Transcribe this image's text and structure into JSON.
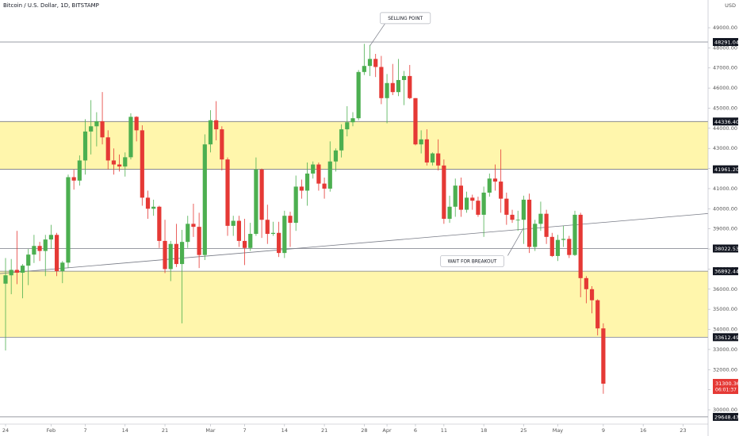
{
  "chart_data": {
    "type": "candlestick",
    "title": "Bitcoin / U.S. Dollar, 1D, BITSTAMP",
    "currency": "USD",
    "up_color": "#4caf50",
    "down_color": "#e53935",
    "x": [
      "Jan 24",
      "Jan 25",
      "Jan 26",
      "Jan 27",
      "Jan 28",
      "Jan 29",
      "Jan 30",
      "Jan 31",
      "Feb 1",
      "Feb 2",
      "Feb 3",
      "Feb 4",
      "Feb 5",
      "Feb 6",
      "Feb 7",
      "Feb 8",
      "Feb 9",
      "Feb 10",
      "Feb 11",
      "Feb 12",
      "Feb 13",
      "Feb 14",
      "Feb 15",
      "Feb 16",
      "Feb 17",
      "Feb 18",
      "Feb 19",
      "Feb 20",
      "Feb 21",
      "Feb 22",
      "Feb 23",
      "Feb 24",
      "Feb 25",
      "Feb 26",
      "Feb 27",
      "Feb 28",
      "Mar 1",
      "Mar 2",
      "Mar 3",
      "Mar 4",
      "Mar 5",
      "Mar 6",
      "Mar 7",
      "Mar 8",
      "Mar 9",
      "Mar 10",
      "Mar 11",
      "Mar 12",
      "Mar 13",
      "Mar 14",
      "Mar 15",
      "Mar 16",
      "Mar 17",
      "Mar 18",
      "Mar 19",
      "Mar 20",
      "Mar 21",
      "Mar 22",
      "Mar 23",
      "Mar 24",
      "Mar 25",
      "Mar 26",
      "Mar 27",
      "Mar 28",
      "Mar 29",
      "Mar 30",
      "Mar 31",
      "Apr 1",
      "Apr 2",
      "Apr 3",
      "Apr 4",
      "Apr 5",
      "Apr 6",
      "Apr 7",
      "Apr 8",
      "Apr 9",
      "Apr 10",
      "Apr 11",
      "Apr 12",
      "Apr 13",
      "Apr 14",
      "Apr 15",
      "Apr 16",
      "Apr 17",
      "Apr 18",
      "Apr 19",
      "Apr 20",
      "Apr 21",
      "Apr 22",
      "Apr 23",
      "Apr 24",
      "Apr 25",
      "Apr 26",
      "Apr 27",
      "Apr 28",
      "Apr 29",
      "Apr 30",
      "May 1",
      "May 2",
      "May 3",
      "May 4",
      "May 5",
      "May 6",
      "May 7",
      "May 8",
      "May 9"
    ],
    "open": [
      36275,
      36690,
      36960,
      36820,
      37170,
      37720,
      38150,
      37900,
      38470,
      38700,
      36900,
      37320,
      41570,
      41400,
      42400,
      43840,
      44100,
      44350,
      43550,
      42400,
      42200,
      42100,
      42560,
      44570,
      43900,
      40550,
      40000,
      40100,
      38400,
      37000,
      38250,
      37250,
      38350,
      39250,
      39100,
      37700,
      43200,
      44400,
      43950,
      42450,
      39150,
      39400,
      38400,
      38050,
      38750,
      41950,
      39450,
      38750,
      38800,
      37800,
      39650,
      39300,
      41100,
      40900,
      41750,
      42200,
      41250,
      41000,
      42350,
      42900,
      43950,
      44300,
      44500,
      46800,
      47100,
      47450,
      47050,
      45500,
      46250,
      45800,
      46400,
      46600,
      45500,
      43200,
      43450,
      42300,
      42750,
      42150,
      39500,
      40100,
      41150,
      39950,
      40550,
      40400,
      39700,
      40800,
      41500,
      41350,
      40500,
      39700,
      39450,
      39450,
      40450,
      38100,
      39250,
      39750,
      38600,
      37650,
      38450,
      38500,
      37700,
      39700,
      36550,
      36000,
      35450,
      34050
    ],
    "high": [
      37550,
      37500,
      38900,
      37250,
      38000,
      38700,
      38350,
      38700,
      39200,
      38800,
      37400,
      41700,
      41950,
      42650,
      44450,
      45400,
      44800,
      45800,
      43900,
      43000,
      42700,
      42800,
      44750,
      44600,
      44150,
      40900,
      40450,
      40150,
      39450,
      38400,
      39250,
      38950,
      39650,
      40250,
      39800,
      43700,
      44900,
      45350,
      44100,
      42550,
      39650,
      39650,
      39500,
      39300,
      42550,
      42000,
      40200,
      39350,
      39350,
      39900,
      39850,
      41650,
      41450,
      42300,
      42350,
      42300,
      41550,
      43350,
      43000,
      44200,
      45100,
      44800,
      46900,
      48200,
      48150,
      47700,
      47600,
      46700,
      47200,
      47450,
      46850,
      47150,
      45500,
      43900,
      43950,
      42800,
      43450,
      42450,
      40650,
      41500,
      41550,
      40850,
      40700,
      40600,
      41100,
      41750,
      42200,
      42950,
      40800,
      39950,
      39900,
      40650,
      40750,
      39450,
      40350,
      39950,
      38800,
      38700,
      39150,
      38650,
      39900,
      39800,
      36650,
      36150,
      35500,
      34300
    ],
    "low": [
      32950,
      35750,
      36250,
      35550,
      36200,
      37300,
      37400,
      36650,
      38000,
      36650,
      36300,
      37050,
      40950,
      41150,
      41700,
      42700,
      43100,
      43200,
      41950,
      41700,
      41850,
      41600,
      42450,
      43350,
      40150,
      39500,
      39650,
      38050,
      36800,
      36400,
      37100,
      34300,
      38050,
      38600,
      37050,
      37450,
      42800,
      43400,
      41900,
      38650,
      38650,
      38100,
      37200,
      37900,
      38650,
      38550,
      38250,
      38650,
      37600,
      37550,
      38100,
      38900,
      40500,
      40150,
      41500,
      40900,
      40500,
      40850,
      41850,
      42550,
      43600,
      44100,
      44400,
      46650,
      46600,
      46550,
      45200,
      44250,
      45650,
      45600,
      45150,
      45450,
      43150,
      42750,
      42150,
      42150,
      41900,
      39250,
      39300,
      39600,
      39600,
      39800,
      39950,
      39600,
      38600,
      40600,
      40900,
      39800,
      39200,
      39300,
      38900,
      38250,
      37800,
      37900,
      38900,
      38250,
      37600,
      37400,
      38100,
      37550,
      37650,
      35600,
      35300,
      34800,
      33700,
      30800
    ],
    "close": [
      36690,
      36960,
      36820,
      37170,
      37720,
      38150,
      37900,
      38470,
      38700,
      36900,
      37320,
      41570,
      41400,
      42400,
      43840,
      44100,
      44350,
      43550,
      42400,
      42200,
      42100,
      42560,
      44570,
      43900,
      40550,
      40000,
      40100,
      38400,
      37000,
      38250,
      37250,
      38350,
      39250,
      39100,
      37700,
      43200,
      44400,
      43950,
      42450,
      39150,
      39400,
      38400,
      38050,
      38750,
      41950,
      39450,
      38750,
      38800,
      37800,
      39650,
      39300,
      41100,
      40900,
      41750,
      42200,
      41250,
      41000,
      42350,
      42900,
      43950,
      44300,
      44500,
      46800,
      47100,
      47450,
      47050,
      45500,
      46250,
      45800,
      46400,
      46600,
      45500,
      43200,
      43450,
      42300,
      42750,
      42150,
      39500,
      40100,
      41150,
      39950,
      40550,
      40400,
      39700,
      40800,
      41500,
      41350,
      40500,
      39700,
      39450,
      39450,
      40450,
      38100,
      39250,
      39750,
      38600,
      37650,
      38450,
      38500,
      37700,
      39700,
      36550,
      36000,
      35450,
      34050,
      31300.36
    ],
    "countdown": "06:01:37",
    "ylim": [
      29290,
      50380
    ],
    "yticks": [
      {
        "value": 30000,
        "label": "30000.00"
      },
      {
        "value": 31000,
        "label": "31000.00"
      },
      {
        "value": 32000,
        "label": "32000.00"
      },
      {
        "value": 33000,
        "label": "33000.00"
      },
      {
        "value": 34000,
        "label": "34000.00"
      },
      {
        "value": 35000,
        "label": "35000.00"
      },
      {
        "value": 36000,
        "label": "36000.00"
      },
      {
        "value": 37000,
        "label": "37000.00"
      },
      {
        "value": 38000,
        "label": "38000.00"
      },
      {
        "value": 39000,
        "label": "39000.00"
      },
      {
        "value": 40000,
        "label": "40000.00"
      },
      {
        "value": 41000,
        "label": "41000.00"
      },
      {
        "value": 42000,
        "label": "42000.00"
      },
      {
        "value": 43000,
        "label": "43000.00"
      },
      {
        "value": 44000,
        "label": "44000.00"
      },
      {
        "value": 45000,
        "label": "45000.00"
      },
      {
        "value": 46000,
        "label": "46000.00"
      },
      {
        "value": 47000,
        "label": "47000.00"
      },
      {
        "value": 48000,
        "label": "48000.00"
      },
      {
        "value": 49000,
        "label": "49000.00"
      }
    ],
    "xticks": [
      {
        "value": "Jan 24",
        "label": "24"
      },
      {
        "value": "Feb 1",
        "label": "Feb"
      },
      {
        "value": "Feb 7",
        "label": "7"
      },
      {
        "value": "Feb 14",
        "label": "14"
      },
      {
        "value": "Feb 21",
        "label": "21"
      },
      {
        "value": "Mar 1",
        "label": "Mar"
      },
      {
        "value": "Mar 7",
        "label": "7"
      },
      {
        "value": "Mar 14",
        "label": "14"
      },
      {
        "value": "Mar 21",
        "label": "21"
      },
      {
        "value": "Mar 28",
        "label": "28"
      },
      {
        "value": "Apr 1",
        "label": "Apr"
      },
      {
        "value": "Apr 6",
        "label": "6"
      },
      {
        "value": "Apr 11",
        "label": "11"
      },
      {
        "value": "Apr 18",
        "label": "18"
      },
      {
        "value": "Apr 25",
        "label": "25"
      },
      {
        "value": "May 1",
        "label": "May"
      },
      {
        "value": "May 9",
        "label": "9"
      },
      {
        "value": "May 16",
        "label": "16"
      },
      {
        "value": "May 23",
        "label": "23"
      }
    ],
    "levels": [
      {
        "value": 48291.04,
        "label": "48291.04"
      },
      {
        "value": 44336.4,
        "label": "44336.40"
      },
      {
        "value": 41961.2,
        "label": "41961.20"
      },
      {
        "value": 38022.53,
        "label": "38022.53"
      },
      {
        "value": 36892.44,
        "label": "36892.44"
      },
      {
        "value": 33612.49,
        "label": "33612.49"
      },
      {
        "value": 29648.47,
        "label": "29648.47"
      }
    ],
    "zones": [
      {
        "from": 41961.2,
        "to": 44336.4,
        "color": "#fff59d"
      },
      {
        "from": 33612.49,
        "to": 36892.44,
        "color": "#fff59d"
      }
    ],
    "trendline": [
      {
        "x": "Jan 24",
        "y": 36800
      },
      {
        "x": "May 9",
        "y": 39320
      }
    ],
    "annotations": [
      {
        "text": "SELLING POINT",
        "x": "Mar 29",
        "y": 48100
      },
      {
        "text": "WAIT FOR BREAKOUT",
        "x": "Apr 25",
        "y": 39050
      }
    ]
  }
}
